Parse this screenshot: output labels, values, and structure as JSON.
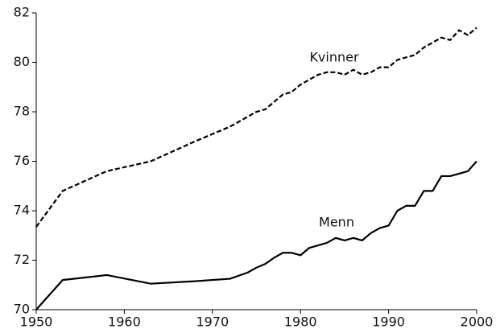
{
  "chart_data": {
    "type": "line",
    "x": [
      1950,
      1953,
      1958,
      1963,
      1968,
      1972,
      1974,
      1975,
      1976,
      1977,
      1978,
      1979,
      1980,
      1981,
      1982,
      1983,
      1984,
      1985,
      1986,
      1987,
      1988,
      1989,
      1990,
      1991,
      1992,
      1993,
      1994,
      1995,
      1996,
      1997,
      1998,
      1999,
      2000
    ],
    "series": [
      {
        "name": "Kvinner",
        "color": "#000000",
        "dash": true,
        "values": [
          73.35,
          74.8,
          75.6,
          76.0,
          76.8,
          77.4,
          77.8,
          78.0,
          78.1,
          78.4,
          78.7,
          78.8,
          79.1,
          79.3,
          79.5,
          79.6,
          79.6,
          79.5,
          79.7,
          79.5,
          79.6,
          79.8,
          79.8,
          80.1,
          80.2,
          80.3,
          80.6,
          80.8,
          81.0,
          80.9,
          81.3,
          81.1,
          81.4
        ]
      },
      {
        "name": "Menn",
        "color": "#000000",
        "dash": false,
        "values": [
          70.0,
          71.2,
          71.4,
          71.05,
          71.15,
          71.25,
          71.5,
          71.7,
          71.85,
          72.1,
          72.3,
          72.3,
          72.2,
          72.5,
          72.6,
          72.7,
          72.9,
          72.8,
          72.9,
          72.8,
          73.1,
          73.3,
          73.4,
          74.0,
          74.2,
          74.2,
          74.8,
          74.8,
          75.4,
          75.4,
          75.5,
          75.6,
          76.0
        ]
      }
    ],
    "xlim": [
      1950,
      2000
    ],
    "xticks": [
      1950,
      1960,
      1970,
      1980,
      1990,
      2000
    ],
    "ylim": [
      70,
      82
    ],
    "yticks": [
      70,
      72,
      74,
      76,
      78,
      80,
      82
    ],
    "grid": false
  }
}
